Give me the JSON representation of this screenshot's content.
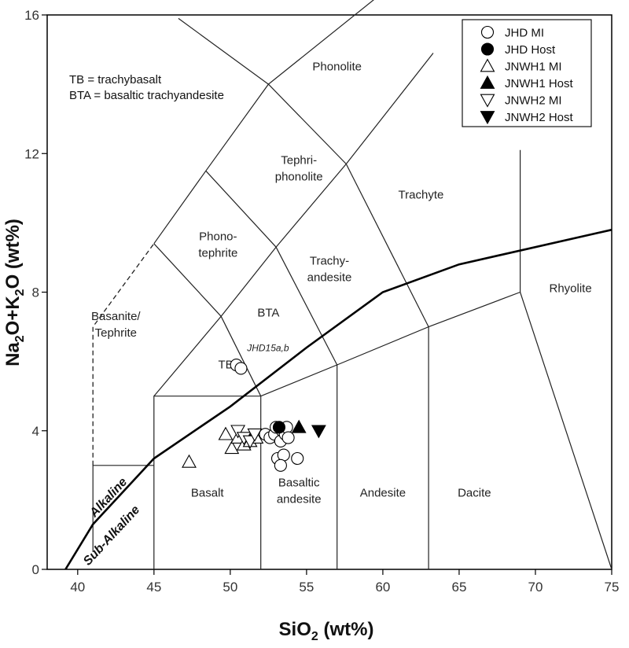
{
  "chart_data": {
    "type": "scatter",
    "title": "",
    "xlabel": {
      "base": "SiO",
      "sub": "2",
      "rest": " (wt%)"
    },
    "ylabel": {
      "p1": "Na",
      "s1": "2",
      "p2": "O+K",
      "s2": "2",
      "p3": "O (wt%)"
    },
    "xlim": [
      38,
      75
    ],
    "ylim": [
      0,
      16
    ],
    "xticks": [
      40,
      45,
      50,
      55,
      60,
      65,
      70,
      75
    ],
    "yticks": [
      0,
      4,
      8,
      12,
      16
    ],
    "grid": false,
    "legend_position": "top-right",
    "field_lines": [
      [
        [
          41,
          0.5
        ],
        [
          41,
          3
        ],
        [
          45,
          3
        ]
      ],
      [
        [
          45,
          0
        ],
        [
          45,
          5
        ],
        [
          52,
          5
        ],
        [
          52,
          0
        ]
      ],
      [
        [
          52,
          5
        ],
        [
          57,
          5.9
        ],
        [
          57,
          0
        ]
      ],
      [
        [
          57,
          5.9
        ],
        [
          63,
          7
        ],
        [
          63,
          0
        ]
      ],
      [
        [
          63,
          7
        ],
        [
          69,
          8
        ],
        [
          69,
          12.1
        ]
      ],
      [
        [
          69,
          8
        ],
        [
          75,
          0
        ]
      ],
      [
        [
          45,
          5
        ],
        [
          49.4,
          7.3
        ],
        [
          53,
          9.3
        ],
        [
          57.6,
          11.7
        ],
        [
          63.3,
          14.9
        ]
      ],
      [
        [
          49.4,
          7.3
        ],
        [
          52,
          5
        ]
      ],
      [
        [
          53,
          9.3
        ],
        [
          57,
          5.9
        ]
      ],
      [
        [
          57.6,
          11.7
        ],
        [
          63,
          7
        ]
      ],
      [
        [
          45,
          9.4
        ],
        [
          48.4,
          11.5
        ],
        [
          52.5,
          14
        ],
        [
          57.6,
          11.7
        ]
      ],
      [
        [
          48.4,
          11.5
        ],
        [
          53,
          9.3
        ]
      ],
      [
        [
          45,
          9.4
        ],
        [
          49.4,
          7.3
        ]
      ],
      [
        [
          46.6,
          15.9
        ],
        [
          52.5,
          14
        ],
        [
          61,
          17
        ]
      ]
    ],
    "dashed_line": [
      [
        41,
        3
      ],
      [
        41,
        7
      ],
      [
        45,
        9.4
      ]
    ],
    "divider": [
      [
        39.2,
        0
      ],
      [
        41,
        1.3
      ],
      [
        45,
        3.2
      ],
      [
        50,
        4.7
      ],
      [
        55,
        6.4
      ],
      [
        60,
        8
      ],
      [
        65,
        8.8
      ],
      [
        75,
        9.8
      ]
    ],
    "fields": [
      {
        "lines": [
          "Phonolite"
        ],
        "x": 57,
        "y": 14.4
      },
      {
        "lines": [
          "Tephri-",
          "phonolite"
        ],
        "x": 54.5,
        "y": 11.7
      },
      {
        "lines": [
          "Trachyte"
        ],
        "x": 62.5,
        "y": 10.7
      },
      {
        "lines": [
          "Phono-",
          "tephrite"
        ],
        "x": 49.2,
        "y": 9.5
      },
      {
        "lines": [
          "Trachy-",
          "andesite"
        ],
        "x": 56.5,
        "y": 8.8
      },
      {
        "lines": [
          "BTA"
        ],
        "x": 52.5,
        "y": 7.3
      },
      {
        "lines": [
          "Rhyolite"
        ],
        "x": 72.3,
        "y": 8
      },
      {
        "lines": [
          "Basanite/",
          "Tephrite"
        ],
        "x": 42.5,
        "y": 7.2
      },
      {
        "lines": [
          "TB"
        ],
        "x": 49.7,
        "y": 5.8
      },
      {
        "lines": [
          "Basalt"
        ],
        "x": 48.5,
        "y": 2.1
      },
      {
        "lines": [
          "Basaltic",
          "andesite"
        ],
        "x": 54.5,
        "y": 2.4
      },
      {
        "lines": [
          "Andesite"
        ],
        "x": 60,
        "y": 2.1
      },
      {
        "lines": [
          "Dacite"
        ],
        "x": 66,
        "y": 2.1
      }
    ],
    "notes": [
      "TB = trachybasalt",
      "BTA = basaltic trachyandesite"
    ],
    "series_labels": [
      {
        "text": "Alkaline",
        "x": 42.2,
        "y": 2.0
      },
      {
        "text": "Sub-Alkaline",
        "x": 42.4,
        "y": 0.9
      }
    ],
    "sample_label": {
      "text": "JHD15a,b",
      "x": 51.1,
      "y": 6.3
    },
    "series": [
      {
        "name": "JHD MI",
        "marker": "circle-open",
        "points": [
          [
            50.4,
            5.9
          ],
          [
            50.7,
            5.8
          ],
          [
            52.3,
            3.9
          ],
          [
            52.6,
            3.8
          ],
          [
            52.9,
            3.9
          ],
          [
            53.0,
            4.1
          ],
          [
            53.3,
            3.7
          ],
          [
            53.4,
            4.0
          ],
          [
            53.6,
            3.9
          ],
          [
            53.7,
            4.1
          ],
          [
            53.1,
            3.2
          ],
          [
            53.5,
            3.3
          ],
          [
            53.3,
            3.0
          ],
          [
            54.4,
            3.2
          ],
          [
            53.8,
            3.8
          ]
        ]
      },
      {
        "name": "JHD Host",
        "marker": "circle-filled",
        "points": [
          [
            53.2,
            4.1
          ]
        ]
      },
      {
        "name": "JNWH1 MI",
        "marker": "triangle-up-open",
        "points": [
          [
            47.3,
            3.1
          ],
          [
            49.7,
            3.9
          ],
          [
            50.1,
            3.5
          ],
          [
            50.5,
            3.8
          ],
          [
            50.9,
            3.6
          ],
          [
            51.3,
            3.7
          ],
          [
            51.7,
            3.8
          ]
        ]
      },
      {
        "name": "JNWH1 Host",
        "marker": "triangle-up-filled",
        "points": [
          [
            54.5,
            4.1
          ]
        ]
      },
      {
        "name": "JNWH2 MI",
        "marker": "triangle-down-open",
        "points": [
          [
            50.5,
            4.0
          ],
          [
            50.9,
            3.8
          ],
          [
            51.3,
            3.7
          ],
          [
            51.6,
            3.9
          ]
        ]
      },
      {
        "name": "JNWH2 Host",
        "marker": "triangle-down-filled",
        "points": [
          [
            55.8,
            4.0
          ]
        ]
      }
    ]
  }
}
